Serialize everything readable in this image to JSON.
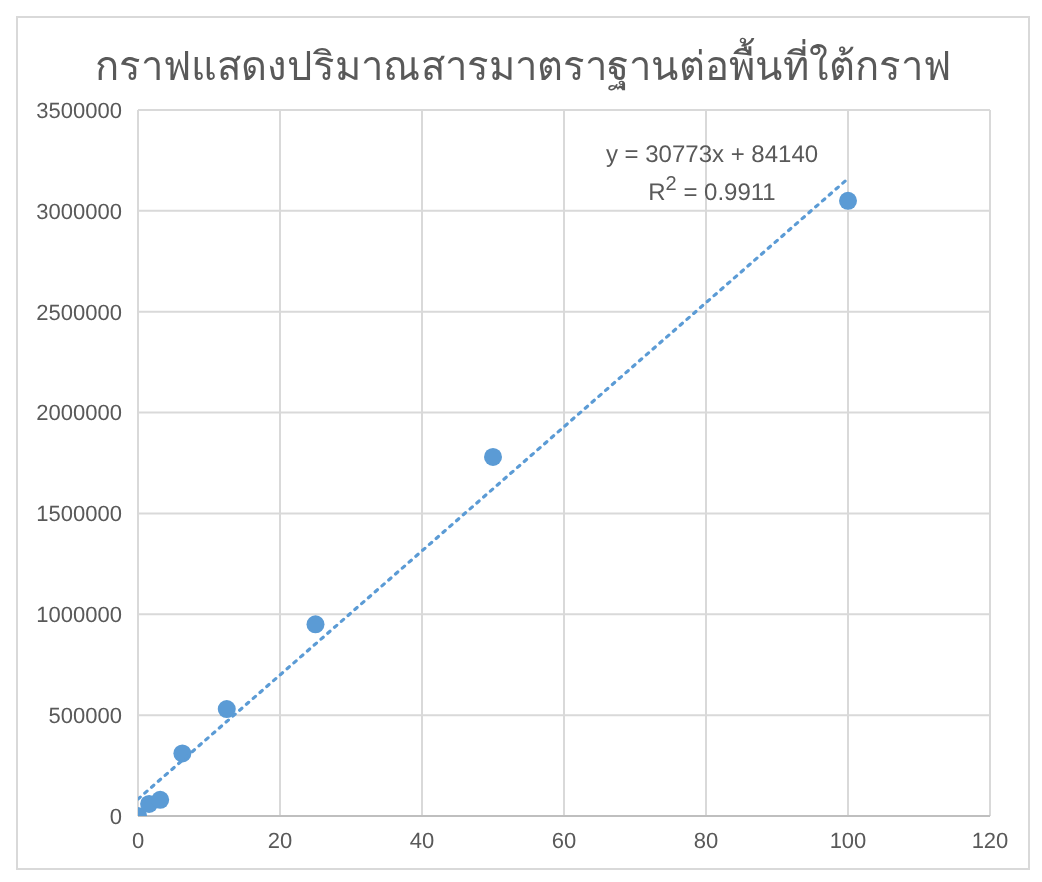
{
  "chart_data": {
    "type": "scatter",
    "title": "กราฟแสดงปริมาณสารมาตราฐานต่อพื้นที่ใต้กราฟ",
    "grid": true,
    "xlim": [
      0,
      120
    ],
    "xticks": [
      0,
      20,
      40,
      60,
      80,
      100,
      120
    ],
    "ylim": [
      0,
      3500000
    ],
    "yticks": [
      0,
      500000,
      1000000,
      1500000,
      2000000,
      2500000,
      3000000,
      3500000
    ],
    "series": [
      {
        "color": "#5b9bd5",
        "marker": "circle",
        "x": [
          0,
          1.5625,
          3.125,
          6.25,
          12.5,
          25,
          50,
          100
        ],
        "values": [
          0,
          60000,
          80000,
          310000,
          530000,
          950000,
          1780000,
          3050000
        ]
      },
      {
        "type": "line",
        "color": "#5b9bd5",
        "marker": "none",
        "line_style": "dotted",
        "x": [
          0,
          100
        ],
        "values": [
          84000,
          3160000
        ]
      }
    ],
    "annotations": [
      "y = 30773x + 84140",
      "R$^{2}$ = 0.9911"
    ]
  }
}
